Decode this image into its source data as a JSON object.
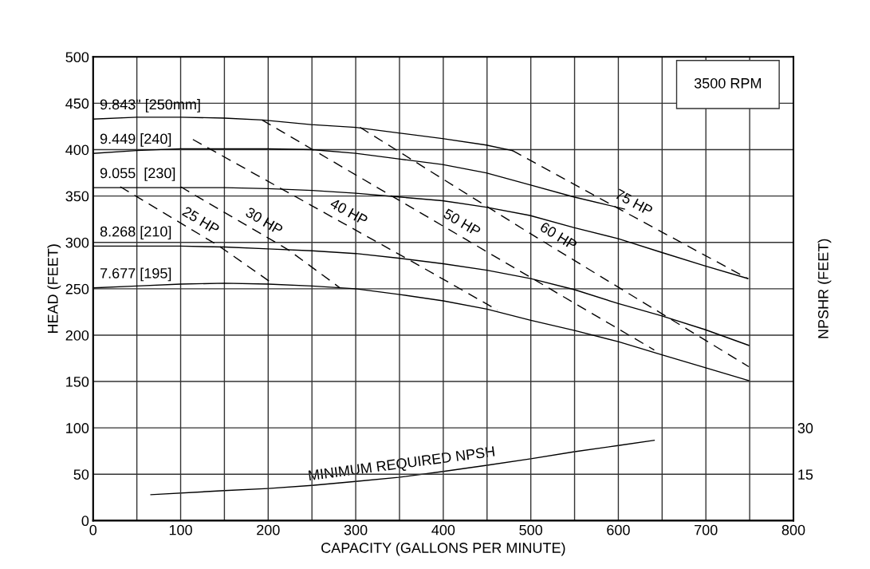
{
  "chart_data": {
    "type": "line",
    "xlabel": "CAPACITY (GALLONS PER MINUTE)",
    "ylabel": "HEAD (FEET)",
    "y2label": "NPSHR (FEET)",
    "annotations": [
      "3500 RPM"
    ],
    "xlim": [
      0,
      800
    ],
    "xticks": [
      0,
      {
        "value": 50,
        "label": null
      },
      100,
      {
        "value": 150,
        "label": null
      },
      200,
      {
        "value": 250,
        "label": null
      },
      300,
      {
        "value": 350,
        "label": null
      },
      400,
      {
        "value": 450,
        "label": null
      },
      500,
      {
        "value": 550,
        "label": null
      },
      600,
      {
        "value": 650,
        "label": null
      },
      700,
      {
        "value": 750,
        "label": null
      },
      800
    ],
    "ylim": [
      0,
      500
    ],
    "yticks": [
      0,
      50,
      100,
      150,
      200,
      250,
      300,
      350,
      400,
      450,
      500
    ],
    "y2lim": [
      0,
      150
    ],
    "y2ticks": [
      15,
      30
    ],
    "grid": true,
    "legend": false,
    "marker": "none",
    "series": [
      {
        "name": "9.843\" [250mm]",
        "color": "#000000",
        "line_style": "solid",
        "x": [
          0,
          50,
          100,
          150,
          194,
          249,
          300,
          349,
          399,
          449,
          479
        ],
        "values": [
          433,
          435,
          435,
          434,
          432,
          427,
          424,
          418,
          412,
          405,
          399
        ]
      },
      {
        "name": "9.449 [240]",
        "color": "#000000",
        "line_style": "solid",
        "x": [
          0,
          50,
          100,
          150,
          200,
          250,
          300,
          349,
          399,
          449,
          499,
          549,
          607
        ],
        "values": [
          396,
          399,
          401,
          401,
          401,
          400,
          396,
          390,
          384,
          375,
          362,
          349,
          336
        ]
      },
      {
        "name": "9.055  [230]",
        "color": "#000000",
        "line_style": "solid",
        "x": [
          0,
          100,
          150,
          200,
          250,
          300,
          349,
          399,
          449,
          499,
          549,
          600,
          650,
          698,
          748
        ],
        "values": [
          359,
          359,
          359,
          358,
          356,
          353,
          349,
          345,
          338,
          329,
          316,
          304,
          289,
          275,
          261
        ]
      },
      {
        "name": "8.268 [210]",
        "color": "#000000",
        "line_style": "solid",
        "x": [
          0,
          100,
          150,
          200,
          250,
          300,
          349,
          400,
          450,
          500,
          550,
          600,
          649,
          699,
          749
        ],
        "values": [
          296,
          296,
          295,
          293,
          291,
          288,
          283,
          277,
          270,
          261,
          249,
          234,
          221,
          206,
          189
        ]
      },
      {
        "name": "7.677 [195]",
        "color": "#000000",
        "line_style": "solid",
        "x": [
          0,
          50,
          100,
          150,
          200,
          250,
          300,
          349,
          400,
          450,
          500,
          550,
          600,
          649,
          699,
          749
        ],
        "values": [
          251,
          253,
          255,
          256,
          255,
          253,
          250,
          244,
          237,
          228,
          216,
          205,
          193,
          179,
          165,
          151
        ]
      },
      {
        "name": "25 HP",
        "color": "#000000",
        "line_style": "dashed",
        "x": [
          31,
          144,
          206
        ],
        "values": [
          360,
          296,
          255
        ]
      },
      {
        "name": "30 HP",
        "color": "#000000",
        "line_style": "dashed",
        "x": [
          100,
          223,
          282
        ],
        "values": [
          360,
          292,
          251
        ]
      },
      {
        "name": "40 HP",
        "color": "#000000",
        "line_style": "dashed",
        "x": [
          114,
          365,
          462
        ],
        "values": [
          411,
          279,
          227
        ]
      },
      {
        "name": "50 HP",
        "color": "#000000",
        "line_style": "dashed",
        "x": [
          193,
          428,
          641
        ],
        "values": [
          432,
          302,
          184
        ]
      },
      {
        "name": "60 HP",
        "color": "#000000",
        "line_style": "dashed",
        "x": [
          305,
          502,
          749
        ],
        "values": [
          424,
          308,
          166
        ]
      },
      {
        "name": "75 HP",
        "color": "#000000",
        "line_style": "dashed",
        "x": [
          479,
          607,
          748
        ],
        "values": [
          399,
          333,
          261
        ]
      },
      {
        "name": "MINIMUM REQUIRED NPSH",
        "color": "#000000",
        "line_style": "solid",
        "axis": "y2",
        "x": [
          66,
          150,
          200,
          250,
          300,
          349,
          400,
          450,
          500,
          550,
          600,
          641
        ],
        "values": [
          8.4,
          9.7,
          10.4,
          11.4,
          12.7,
          14.0,
          15.9,
          17.9,
          20.0,
          22.3,
          24.3,
          26.0
        ]
      }
    ]
  }
}
